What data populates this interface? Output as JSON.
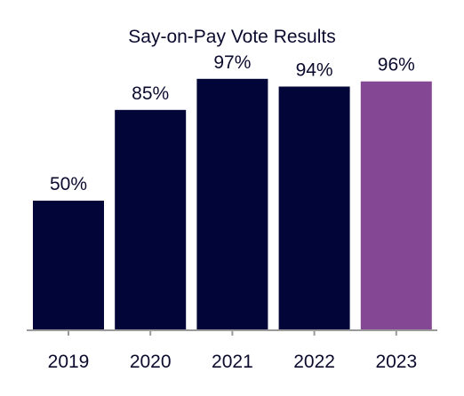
{
  "chart_data": {
    "type": "bar",
    "title": "Say-on-Pay Vote Results",
    "xlabel": "",
    "ylabel": "",
    "categories": [
      "2019",
      "2020",
      "2021",
      "2022",
      "2023"
    ],
    "values": [
      50,
      85,
      97,
      94,
      96
    ],
    "data_labels": [
      "50%",
      "85%",
      "97%",
      "94%",
      "96%"
    ],
    "ylim": [
      0,
      100
    ],
    "grid": false,
    "legend": "none",
    "colors": {
      "default_bar": "#020538",
      "highlight_bar": "#834793",
      "text": "#0b0b2e",
      "axis": "#9a9a9a"
    },
    "highlight_index": 4
  }
}
